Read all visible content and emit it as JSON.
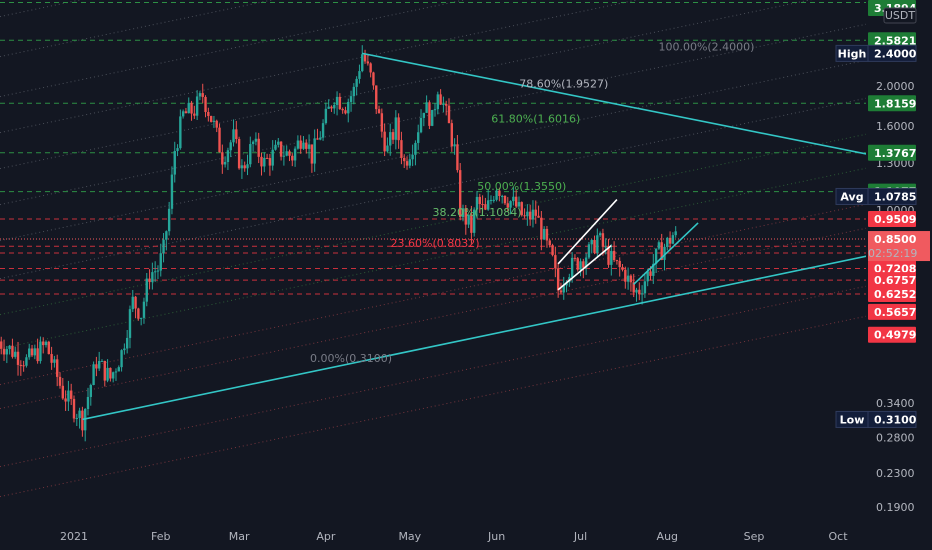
{
  "chart_data": {
    "type": "candlestick",
    "currency_label": "USDT",
    "scale": "log",
    "grid": false,
    "y_axis": {
      "range": [
        0.17,
        3.5
      ],
      "tick_labels": [
        {
          "label": "2.0000",
          "value": 2.0
        },
        {
          "label": "1.6000",
          "value": 1.6
        },
        {
          "label": "1.3000",
          "value": 1.3
        },
        {
          "label": "1.0000",
          "value": 1.0
        },
        {
          "label": "0.3400",
          "value": 0.34
        },
        {
          "label": "0.2800",
          "value": 0.28
        },
        {
          "label": "0.2300",
          "value": 0.23
        },
        {
          "label": "0.1900",
          "value": 0.19
        }
      ]
    },
    "x_axis": {
      "range": [
        "2020-12-05",
        "2021-10-20"
      ],
      "tick_labels": [
        {
          "label": "2021",
          "date": "2021-01-01"
        },
        {
          "label": "Feb",
          "date": "2021-02-01"
        },
        {
          "label": "Mar",
          "date": "2021-03-01"
        },
        {
          "label": "Apr",
          "date": "2021-04-01"
        },
        {
          "label": "May",
          "date": "2021-05-01"
        },
        {
          "label": "Jun",
          "date": "2021-06-01"
        },
        {
          "label": "Jul",
          "date": "2021-07-01"
        },
        {
          "label": "Aug",
          "date": "2021-08-01"
        },
        {
          "label": "Sep",
          "date": "2021-09-01"
        },
        {
          "label": "Oct",
          "date": "2021-10-01"
        }
      ]
    },
    "price_path": [
      {
        "date": "2020-12-05",
        "price": 0.48
      },
      {
        "date": "2020-12-15",
        "price": 0.43
      },
      {
        "date": "2020-12-22",
        "price": 0.47
      },
      {
        "date": "2020-12-28",
        "price": 0.36
      },
      {
        "date": "2021-01-04",
        "price": 0.31
      },
      {
        "date": "2021-01-09",
        "price": 0.43
      },
      {
        "date": "2021-01-14",
        "price": 0.39
      },
      {
        "date": "2021-01-18",
        "price": 0.45
      },
      {
        "date": "2021-01-22",
        "price": 0.6
      },
      {
        "date": "2021-01-25",
        "price": 0.56
      },
      {
        "date": "2021-01-28",
        "price": 0.7
      },
      {
        "date": "2021-01-31",
        "price": 0.72
      },
      {
        "date": "2021-02-02",
        "price": 0.8
      },
      {
        "date": "2021-02-04",
        "price": 1.0
      },
      {
        "date": "2021-02-06",
        "price": 1.4
      },
      {
        "date": "2021-02-09",
        "price": 1.7
      },
      {
        "date": "2021-02-13",
        "price": 1.75
      },
      {
        "date": "2021-02-16",
        "price": 1.9
      },
      {
        "date": "2021-02-20",
        "price": 1.6
      },
      {
        "date": "2021-02-23",
        "price": 1.35
      },
      {
        "date": "2021-02-27",
        "price": 1.5
      },
      {
        "date": "2021-03-02",
        "price": 1.25
      },
      {
        "date": "2021-03-06",
        "price": 1.45
      },
      {
        "date": "2021-03-10",
        "price": 1.3
      },
      {
        "date": "2021-03-15",
        "price": 1.4
      },
      {
        "date": "2021-03-20",
        "price": 1.35
      },
      {
        "date": "2021-03-24",
        "price": 1.55
      },
      {
        "date": "2021-03-27",
        "price": 1.35
      },
      {
        "date": "2021-03-31",
        "price": 1.6
      },
      {
        "date": "2021-04-04",
        "price": 1.9
      },
      {
        "date": "2021-04-08",
        "price": 1.8
      },
      {
        "date": "2021-04-11",
        "price": 1.95
      },
      {
        "date": "2021-04-14",
        "price": 2.4
      },
      {
        "date": "2021-04-17",
        "price": 2.1
      },
      {
        "date": "2021-04-21",
        "price": 1.55
      },
      {
        "date": "2021-04-23",
        "price": 1.4
      },
      {
        "date": "2021-04-26",
        "price": 1.6
      },
      {
        "date": "2021-04-29",
        "price": 1.3
      },
      {
        "date": "2021-05-03",
        "price": 1.5
      },
      {
        "date": "2021-05-06",
        "price": 1.8
      },
      {
        "date": "2021-05-09",
        "price": 1.65
      },
      {
        "date": "2021-05-11",
        "price": 2.0
      },
      {
        "date": "2021-05-14",
        "price": 1.7
      },
      {
        "date": "2021-05-17",
        "price": 1.4
      },
      {
        "date": "2021-05-19",
        "price": 1.0
      },
      {
        "date": "2021-05-21",
        "price": 0.95
      },
      {
        "date": "2021-05-23",
        "price": 0.9
      },
      {
        "date": "2021-05-25",
        "price": 1.05
      },
      {
        "date": "2021-05-28",
        "price": 0.98
      },
      {
        "date": "2021-06-01",
        "price": 1.15
      },
      {
        "date": "2021-06-04",
        "price": 1.08
      },
      {
        "date": "2021-06-08",
        "price": 1.02
      },
      {
        "date": "2021-06-11",
        "price": 0.95
      },
      {
        "date": "2021-06-15",
        "price": 0.98
      },
      {
        "date": "2021-06-18",
        "price": 0.85
      },
      {
        "date": "2021-06-21",
        "price": 0.75
      },
      {
        "date": "2021-06-23",
        "price": 0.64
      },
      {
        "date": "2021-06-26",
        "price": 0.71
      },
      {
        "date": "2021-06-29",
        "price": 0.74
      },
      {
        "date": "2021-07-02",
        "price": 0.77
      },
      {
        "date": "2021-07-05",
        "price": 0.8
      },
      {
        "date": "2021-07-07",
        "price": 0.86
      },
      {
        "date": "2021-07-10",
        "price": 0.79
      },
      {
        "date": "2021-07-13",
        "price": 0.74
      },
      {
        "date": "2021-07-17",
        "price": 0.7
      },
      {
        "date": "2021-07-20",
        "price": 0.63
      },
      {
        "date": "2021-07-22",
        "price": 0.64
      },
      {
        "date": "2021-07-26",
        "price": 0.72
      },
      {
        "date": "2021-07-29",
        "price": 0.79
      },
      {
        "date": "2021-08-01",
        "price": 0.83
      },
      {
        "date": "2021-08-03",
        "price": 0.87
      },
      {
        "date": "2021-08-05",
        "price": 0.85
      }
    ],
    "horizontal_levels": [
      {
        "label": "3.1894",
        "value": 3.1894,
        "color": "#1e7d36",
        "line_color": "#2d8f45",
        "line_style": "dashed"
      },
      {
        "label": "2.5821",
        "value": 2.5821,
        "color": "#1e7d36",
        "line_color": "#2d8f45",
        "line_style": "dashed"
      },
      {
        "label": "1.8159",
        "value": 1.8159,
        "color": "#1e7d36",
        "line_color": "#2d8f45",
        "line_style": "dashed"
      },
      {
        "label": "1.3767",
        "value": 1.3767,
        "color": "#1e7d36",
        "line_color": "#2d8f45",
        "line_style": "dashed"
      },
      {
        "label": "1.1077",
        "value": 1.1077,
        "color": "#1e7d36",
        "line_color": "#2d8f45",
        "line_style": "dashed"
      },
      {
        "label": "0.9509",
        "value": 0.9509,
        "color": "#f23645",
        "line_color": "#c9303c",
        "line_style": "dashed"
      },
      {
        "label": "0.8162",
        "value": 0.8162,
        "color": "#f23645",
        "line_color": "#c9303c",
        "line_style": "dashed"
      },
      {
        "label": "0.7862",
        "value": 0.7862,
        "color": "#f23645",
        "line_color": "#c9303c",
        "line_style": "dashed"
      },
      {
        "label": "0.7208",
        "value": 0.7208,
        "color": "#f23645",
        "line_color": "#c9303c",
        "line_style": "dashed"
      },
      {
        "label": "0.6757",
        "value": 0.6757,
        "color": "#f23645",
        "line_color": "#c9303c",
        "line_style": "dashed"
      },
      {
        "label": "0.6252",
        "value": 0.6252,
        "color": "#f23645",
        "line_color": "#c9303c",
        "line_style": "dashed"
      },
      {
        "label": "0.5657",
        "value": 0.5657,
        "color": "#f23645",
        "line_color": "#c9303c",
        "line_style": "none"
      },
      {
        "label": "0.4979",
        "value": 0.4979,
        "color": "#f23645",
        "line_color": "#c9303c",
        "line_style": "none"
      }
    ],
    "stat_tags": [
      {
        "name": "High",
        "label": "2.4000",
        "value": 2.4
      },
      {
        "name": "Avg",
        "label": "1.0785",
        "value": 1.0785
      },
      {
        "name": "Low",
        "label": "0.3100",
        "value": 0.31
      }
    ],
    "current_price": {
      "label": "0.8500",
      "countdown": "02:52:19",
      "value": 0.85,
      "color": "#f05a5f"
    },
    "fib_levels": [
      {
        "text": "100.00%(2.4000)",
        "value": 2.4,
        "date": "2021-08-15",
        "color": "#787b86"
      },
      {
        "text": "78.60%(1.9527)",
        "value": 1.9527,
        "date": "2021-06-25",
        "color": "#b2b5be"
      },
      {
        "text": "61.80%(1.6016)",
        "value": 1.6016,
        "date": "2021-06-15",
        "color": "#4caf50"
      },
      {
        "text": "50.00%(1.3550)",
        "value": 1.1,
        "date": "2021-06-10",
        "color": "#4caf50"
      },
      {
        "text": "38.20%(1.1084)",
        "value": 0.95,
        "date": "2021-05-25",
        "color": "#66bb6a"
      },
      {
        "text": "23.60%(0.8032)",
        "value": 0.8,
        "date": "2021-05-10",
        "color": "#f23645"
      },
      {
        "text": "0.00%(0.3100)",
        "value": 0.42,
        "date": "2021-04-10",
        "color": "#787b86"
      }
    ],
    "trend_lines": [
      {
        "name": "descending-resistance",
        "from": {
          "date": "2021-04-14",
          "price": 2.4
        },
        "to": {
          "date": "2021-10-20",
          "price": 1.33
        },
        "color": "#33c6c6"
      },
      {
        "name": "ascending-support",
        "from": {
          "date": "2021-01-04",
          "price": 0.31
        },
        "to": {
          "date": "2021-10-20",
          "price": 0.795
        },
        "color": "#33c6c6"
      },
      {
        "name": "channel-lower",
        "from": {
          "date": "2021-06-23",
          "price": 0.64
        },
        "to": {
          "date": "2021-07-12",
          "price": 0.82
        },
        "color": "#ffffff"
      },
      {
        "name": "channel-upper",
        "from": {
          "date": "2021-06-23",
          "price": 0.74
        },
        "to": {
          "date": "2021-07-14",
          "price": 1.06
        },
        "color": "#ffffff"
      },
      {
        "name": "recent-support",
        "from": {
          "date": "2021-07-20",
          "price": 0.66
        },
        "to": {
          "date": "2021-08-12",
          "price": 0.93
        },
        "color": "#33c6c6"
      }
    ]
  }
}
